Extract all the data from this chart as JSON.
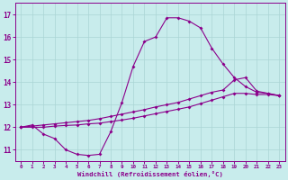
{
  "title": "",
  "xlabel": "Windchill (Refroidissement éolien,°C)",
  "ylabel": "",
  "bg_color": "#c8ecec",
  "line_color": "#8b008b",
  "grid_color": "#aad4d4",
  "xlim": [
    -0.5,
    23.5
  ],
  "ylim": [
    10.5,
    17.5
  ],
  "yticks": [
    11,
    12,
    13,
    14,
    15,
    16,
    17
  ],
  "xticks": [
    0,
    1,
    2,
    3,
    4,
    5,
    6,
    7,
    8,
    9,
    10,
    11,
    12,
    13,
    14,
    15,
    16,
    17,
    18,
    19,
    20,
    21,
    22,
    23
  ],
  "line1": {
    "x": [
      0,
      1,
      2,
      3,
      4,
      5,
      6,
      7,
      8,
      9,
      10,
      11,
      12,
      13,
      14,
      15,
      16,
      17,
      18,
      19,
      20,
      21,
      22,
      23
    ],
    "y": [
      12.0,
      12.1,
      11.7,
      11.5,
      11.0,
      10.8,
      10.75,
      10.8,
      11.8,
      13.1,
      14.7,
      15.8,
      16.0,
      16.85,
      16.85,
      16.7,
      16.4,
      15.5,
      14.8,
      14.2,
      13.8,
      13.55,
      13.5,
      13.4
    ]
  },
  "line2": {
    "x": [
      0,
      1,
      2,
      3,
      4,
      5,
      6,
      7,
      8,
      9,
      10,
      11,
      12,
      13,
      14,
      15,
      16,
      17,
      18,
      19,
      20,
      21,
      22,
      23
    ],
    "y": [
      12.0,
      12.05,
      12.1,
      12.15,
      12.2,
      12.25,
      12.3,
      12.38,
      12.48,
      12.58,
      12.68,
      12.78,
      12.9,
      13.0,
      13.1,
      13.25,
      13.4,
      13.55,
      13.65,
      14.1,
      14.2,
      13.6,
      13.5,
      13.4
    ]
  },
  "line3": {
    "x": [
      0,
      1,
      2,
      3,
      4,
      5,
      6,
      7,
      8,
      9,
      10,
      11,
      12,
      13,
      14,
      15,
      16,
      17,
      18,
      19,
      20,
      21,
      22,
      23
    ],
    "y": [
      12.0,
      12.0,
      12.0,
      12.05,
      12.08,
      12.1,
      12.15,
      12.18,
      12.25,
      12.32,
      12.4,
      12.5,
      12.6,
      12.7,
      12.8,
      12.9,
      13.05,
      13.2,
      13.35,
      13.5,
      13.5,
      13.45,
      13.45,
      13.4
    ]
  }
}
